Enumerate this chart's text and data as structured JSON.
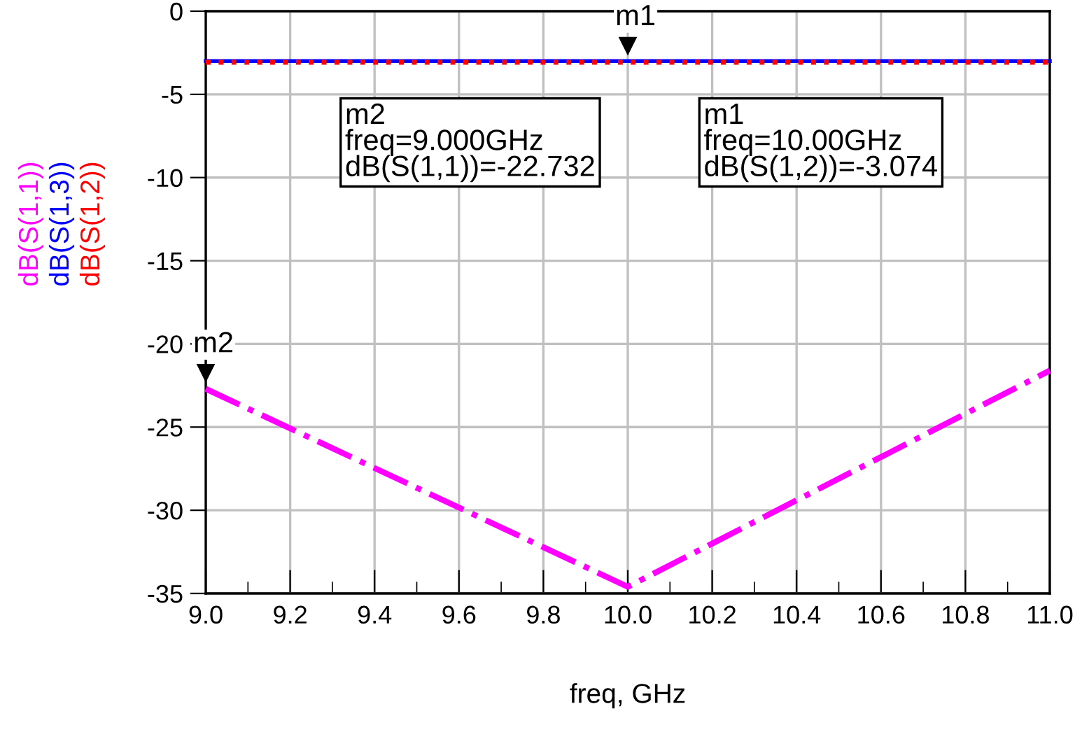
{
  "chart_data": {
    "type": "line",
    "xlabel": "freq, GHz",
    "x": [
      9.0,
      10.0,
      11.0
    ],
    "series": [
      {
        "name": "dB(S(1,1))",
        "color": "#ff00ff",
        "values": [
          -22.7,
          -34.6,
          -21.6
        ],
        "line_style": "dashdot"
      },
      {
        "name": "dB(S(1,3))",
        "color": "#0000ff",
        "values": [
          -3.0,
          -3.0,
          -3.0
        ],
        "line_style": "solid"
      },
      {
        "name": "dB(S(1,2))",
        "color": "#ff0000",
        "values": [
          -3.07,
          -3.07,
          -3.07
        ],
        "line_style": "dotted"
      }
    ],
    "xlim": [
      9.0,
      11.0
    ],
    "ylim": [
      -35,
      0
    ],
    "xticks": [
      {
        "value": 9.0,
        "label": "9.0"
      },
      {
        "value": 9.1,
        "label": null
      },
      {
        "value": 9.2,
        "label": "9.2"
      },
      {
        "value": 9.3,
        "label": null
      },
      {
        "value": 9.4,
        "label": "9.4"
      },
      {
        "value": 9.5,
        "label": null
      },
      {
        "value": 9.6,
        "label": "9.6"
      },
      {
        "value": 9.7,
        "label": null
      },
      {
        "value": 9.8,
        "label": "9.8"
      },
      {
        "value": 9.9,
        "label": null
      },
      {
        "value": 10.0,
        "label": "10.0"
      },
      {
        "value": 10.1,
        "label": null
      },
      {
        "value": 10.2,
        "label": "10.2"
      },
      {
        "value": 10.3,
        "label": null
      },
      {
        "value": 10.4,
        "label": "10.4"
      },
      {
        "value": 10.5,
        "label": null
      },
      {
        "value": 10.6,
        "label": "10.6"
      },
      {
        "value": 10.7,
        "label": null
      },
      {
        "value": 10.8,
        "label": "10.8"
      },
      {
        "value": 10.9,
        "label": null
      },
      {
        "value": 11.0,
        "label": "11.0"
      }
    ],
    "yticks": [
      0,
      -5,
      -10,
      -15,
      -20,
      -25,
      -30,
      -35
    ],
    "grid": true,
    "legend": false,
    "annotations": [
      {
        "text": "m1",
        "x": 10.0,
        "y": -3.074
      },
      {
        "text": "m2",
        "x": 9.0,
        "y": -22.732
      },
      "m2\nfreq=9.000GHz\ndB(S(1,1))=-22.732",
      "m1\nfreq=10.00GHz\ndB(S(1,2))=-3.074"
    ]
  }
}
